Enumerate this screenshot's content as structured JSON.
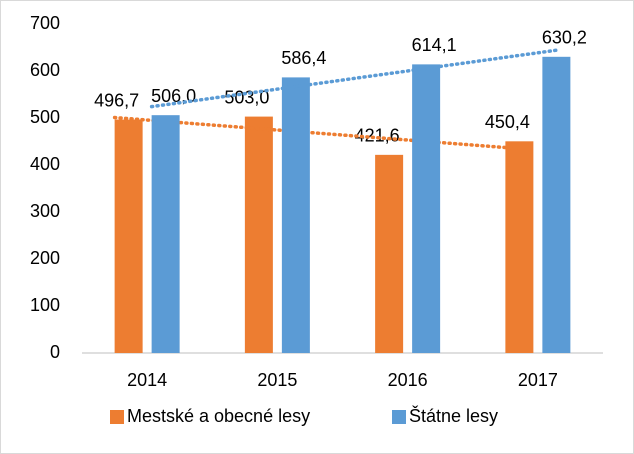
{
  "chart_data": {
    "type": "bar",
    "categories": [
      "2014",
      "2015",
      "2016",
      "2017"
    ],
    "series": [
      {
        "name": "Mestské a obecné lesy",
        "color": "#ed7d31",
        "values": [
          496.7,
          503.0,
          421.6,
          450.4
        ],
        "value_labels": [
          "496,7",
          "503,0",
          "421,6",
          "450,4"
        ]
      },
      {
        "name": "Štátne lesy",
        "color": "#5b9bd5",
        "values": [
          506.0,
          586.4,
          614.1,
          630.2
        ],
        "value_labels": [
          "506,0",
          "586,4",
          "614,1",
          "630,2"
        ]
      }
    ],
    "ylim": [
      0,
      700
    ],
    "yticks": [
      0,
      100,
      200,
      300,
      400,
      500,
      600,
      700
    ],
    "grid": false,
    "trendline": true,
    "legend": "bottom"
  }
}
